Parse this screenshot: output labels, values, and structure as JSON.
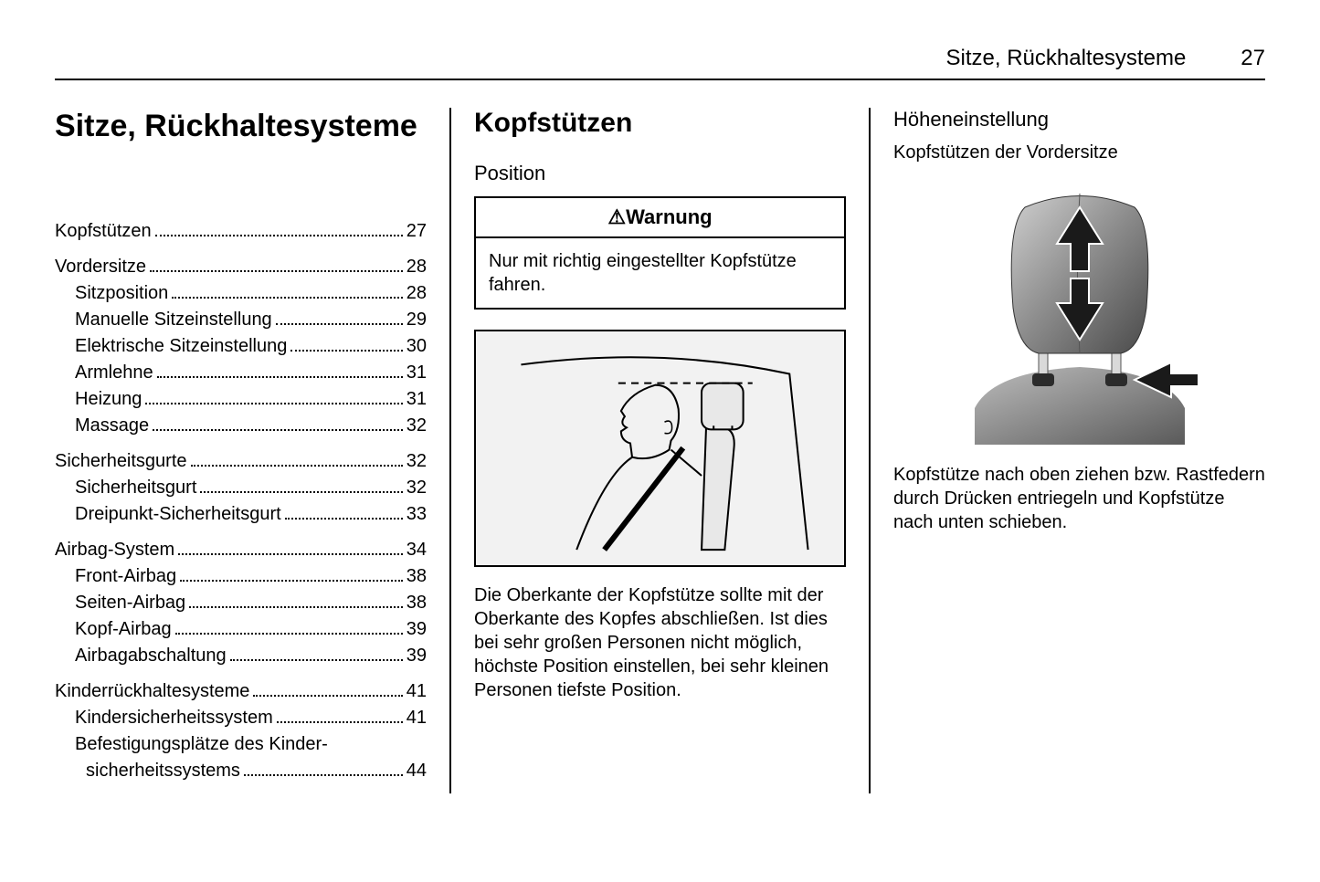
{
  "header": {
    "title": "Sitze, Rückhaltesysteme",
    "page": "27"
  },
  "col1": {
    "title": "Sitze, Rückhaltesysteme",
    "toc": [
      {
        "group": [
          {
            "label": "Kopfstützen",
            "page": "27",
            "indent": 0
          }
        ]
      },
      {
        "group": [
          {
            "label": "Vordersitze",
            "page": "28",
            "indent": 0
          },
          {
            "label": "Sitzposition",
            "page": "28",
            "indent": 1
          },
          {
            "label": "Manuelle Sitzeinstellung",
            "page": "29",
            "indent": 1
          },
          {
            "label": "Elektrische Sitzeinstellung",
            "page": "30",
            "indent": 1
          },
          {
            "label": "Armlehne",
            "page": "31",
            "indent": 1
          },
          {
            "label": "Heizung",
            "page": "31",
            "indent": 1
          },
          {
            "label": "Massage",
            "page": "32",
            "indent": 1
          }
        ]
      },
      {
        "group": [
          {
            "label": "Sicherheitsgurte",
            "page": "32",
            "indent": 0
          },
          {
            "label": "Sicherheitsgurt",
            "page": "32",
            "indent": 1
          },
          {
            "label": "Dreipunkt-Sicherheitsgurt",
            "page": "33",
            "indent": 1
          }
        ]
      },
      {
        "group": [
          {
            "label": "Airbag-System",
            "page": "34",
            "indent": 0
          },
          {
            "label": "Front-Airbag",
            "page": "38",
            "indent": 1
          },
          {
            "label": "Seiten-Airbag",
            "page": "38",
            "indent": 1
          },
          {
            "label": "Kopf-Airbag",
            "page": "39",
            "indent": 1
          },
          {
            "label": "Airbagabschaltung",
            "page": "39",
            "indent": 1
          }
        ]
      },
      {
        "group": [
          {
            "label": "Kinderrückhaltesysteme",
            "page": "41",
            "indent": 0
          },
          {
            "label": "Kindersicherheitssystem",
            "page": "41",
            "indent": 1
          },
          {
            "label": "Befestigungsplätze des Kinder-",
            "label2": "sicherheitssystems",
            "page": "44",
            "indent": 1
          }
        ]
      }
    ]
  },
  "col2": {
    "title": "Kopfstützen",
    "subtitle": "Position",
    "warning_title": "Warnung",
    "warning_body": "Nur mit richtig eingestellter Kopf­stütze fahren.",
    "body": "Die Oberkante der Kopfstütze sollte mit der Oberkante des Kopfes abschließen. Ist dies bei sehr großen Personen nicht möglich, höchste Position einstellen, bei sehr kleinen Personen tiefste Position."
  },
  "col3": {
    "subtitle": "Höheneinstellung",
    "subsub": "Kopfstützen der Vordersitze",
    "body": "Kopfstütze nach oben ziehen bzw. Rastfedern durch Drücken entriegeln und Kopfstütze nach unten schieben."
  },
  "colors": {
    "text": "#000000",
    "bg": "#ffffff",
    "illus_bg": "#f2f2f2",
    "photo_dark": "#3a3a3a",
    "photo_mid": "#6b6b6b",
    "photo_light": "#b8b8b8",
    "arrow": "#1a1a1a"
  }
}
